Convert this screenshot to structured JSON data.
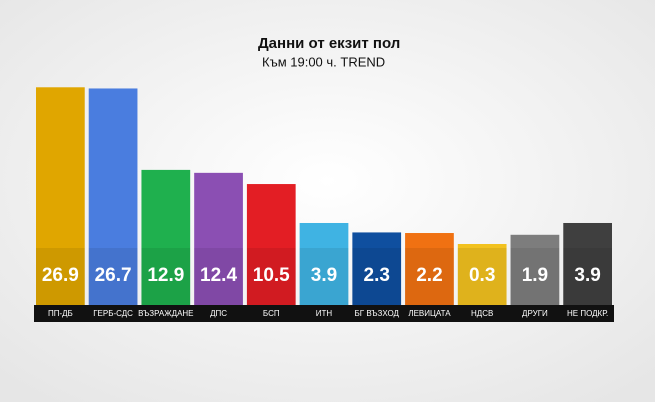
{
  "chart_data": {
    "type": "bar",
    "title": "Данни от екзит пол",
    "subtitle": "Към 19:00 ч. TREND",
    "categories": [
      "ПП-ДБ",
      "ГЕРБ-СДС",
      "ВЪЗРАЖДАНЕ",
      "ДПС",
      "БСП",
      "ИТН",
      "БГ ВЪЗХОД",
      "ЛЕВИЦАТА",
      "НДСВ",
      "ДРУГИ",
      "НЕ ПОДКР."
    ],
    "values": [
      26.9,
      26.7,
      12.9,
      12.4,
      10.5,
      3.9,
      2.3,
      2.2,
      0.3,
      1.9,
      3.9
    ],
    "colors": [
      "#e0a600",
      "#4a7ddf",
      "#1fb04e",
      "#8b4fb3",
      "#e31e24",
      "#3fb3e3",
      "#0f4f9f",
      "#f07112",
      "#f2c21f",
      "#7d7d7d",
      "#3f3f3f"
    ]
  }
}
